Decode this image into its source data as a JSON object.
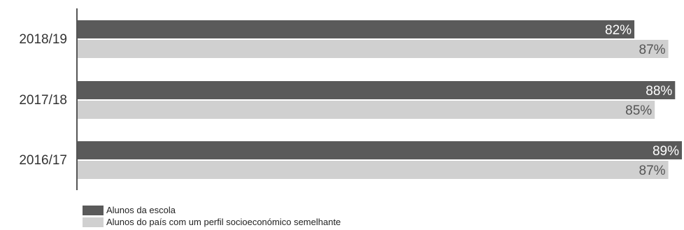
{
  "chart_data": {
    "type": "bar",
    "orientation": "horizontal",
    "categories": [
      "2018/19",
      "2017/18",
      "2016/17"
    ],
    "series": [
      {
        "name": "Alunos da escola",
        "color": "#5a5a5a",
        "label_color": "#ffffff",
        "values": [
          82,
          88,
          89
        ]
      },
      {
        "name": "Alunos do país com um perfil socioeconómico semelhante",
        "color": "#d0d0d0",
        "label_color": "#555555",
        "values": [
          87,
          85,
          87
        ]
      }
    ],
    "value_suffix": "%",
    "xlim": [
      0,
      89
    ],
    "grid": false,
    "legend_position": "bottom-left"
  }
}
